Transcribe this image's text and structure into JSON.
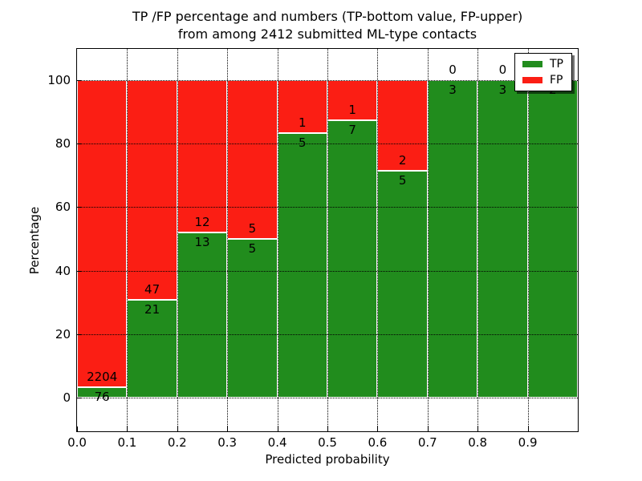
{
  "title": {
    "line1": "TP /FP percentage and numbers (TP-bottom value, FP-upper)",
    "line2": "from among 2412 submitted ML-type contacts"
  },
  "chart_data": {
    "type": "bar",
    "subtype": "stacked-percentage",
    "title": "TP /FP percentage and numbers (TP-bottom value, FP-upper) from among 2412 submitted ML-type contacts",
    "xlabel": "Predicted probability",
    "ylabel": "Percentage",
    "total_contacts": 2412,
    "bin_edges": [
      0.0,
      0.1,
      0.2,
      0.3,
      0.4,
      0.5,
      0.6,
      0.7,
      0.8,
      0.9,
      1.0
    ],
    "categories": [
      "0.0-0.1",
      "0.1-0.2",
      "0.2-0.3",
      "0.3-0.4",
      "0.4-0.5",
      "0.5-0.6",
      "0.6-0.7",
      "0.7-0.8",
      "0.8-0.9",
      "0.9-1.0"
    ],
    "series": [
      {
        "name": "TP",
        "color": "#218c1d",
        "values": [
          76,
          21,
          13,
          5,
          5,
          7,
          5,
          3,
          3,
          2
        ]
      },
      {
        "name": "FP",
        "color": "#fb1e14",
        "values": [
          2204,
          47,
          12,
          5,
          1,
          1,
          2,
          0,
          0,
          0
        ]
      }
    ],
    "tp_percent_of_bin": [
      3.3,
      30.9,
      52.0,
      50.0,
      83.3,
      87.5,
      71.4,
      100.0,
      100.0,
      100.0
    ],
    "fp_label_visible": [
      true,
      true,
      true,
      true,
      true,
      true,
      true,
      true,
      true,
      false
    ],
    "xticks": [
      "0.0",
      "0.1",
      "0.2",
      "0.3",
      "0.4",
      "0.5",
      "0.6",
      "0.7",
      "0.8",
      "0.9"
    ],
    "yticks": [
      0,
      20,
      40,
      60,
      80,
      100
    ],
    "xlim": [
      0.0,
      1.0
    ],
    "ylim": [
      -10.6,
      109.8
    ],
    "grid": true,
    "grid_style": "dotted",
    "legend": {
      "position": "upper right",
      "entries": [
        {
          "label": "TP",
          "color": "#218c1d"
        },
        {
          "label": "FP",
          "color": "#fb1e14"
        }
      ]
    }
  }
}
